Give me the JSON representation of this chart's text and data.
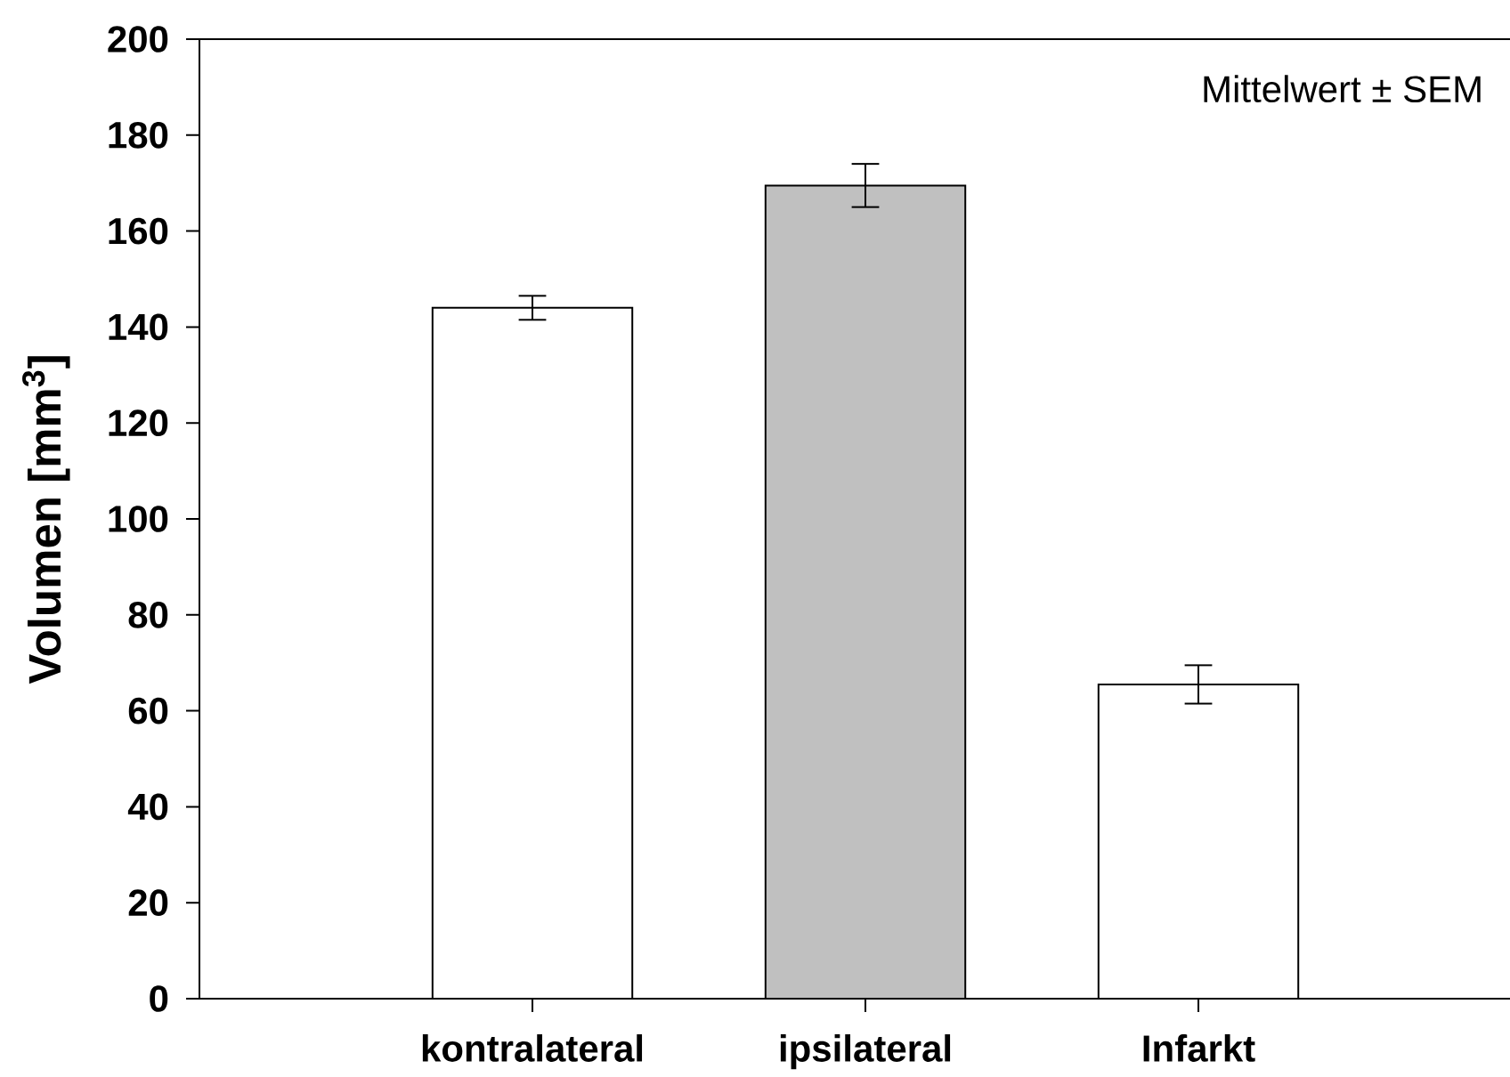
{
  "chart_data": {
    "type": "bar",
    "ylabel": "Volumen [mm$^{3}$]",
    "categories": [
      "kontralateral",
      "ipsilateral",
      "Infarkt"
    ],
    "values": [
      144,
      169.5,
      65.5
    ],
    "errors": [
      2.5,
      4.5,
      4
    ],
    "colors": [
      "#ffffff",
      "#c0c0c0",
      "#ffffff"
    ],
    "ylim": [
      0,
      200
    ],
    "yticks": [
      0,
      20,
      40,
      60,
      80,
      100,
      120,
      140,
      160,
      180,
      200
    ],
    "annotations": [
      "Mittelwert ± SEM"
    ]
  }
}
